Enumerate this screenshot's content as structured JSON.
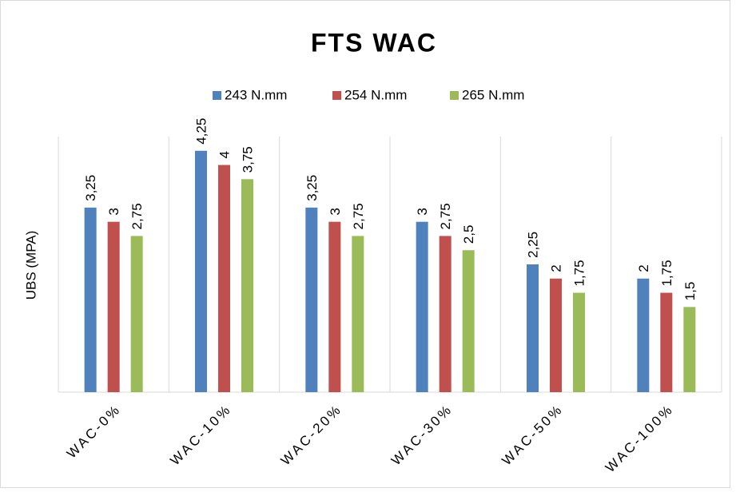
{
  "chart_data": {
    "type": "bar",
    "title": "FTS WAC",
    "y_label": "UBS (MPA)",
    "categories": [
      "WAC-0%",
      "WAC-10%",
      "WAC-20%",
      "WAC-30%",
      "WAC-50%",
      "WAC-100%"
    ],
    "series": [
      {
        "name": "243 N.mm",
        "color": "#4f81bd",
        "values": [
          3.25,
          4.25,
          3.25,
          3,
          2.25,
          2
        ],
        "value_labels": [
          "3,25",
          "4,25",
          "3,25",
          "3",
          "2,25",
          "2"
        ]
      },
      {
        "name": "254 N.mm",
        "color": "#c0504d",
        "values": [
          3,
          4,
          3,
          2.75,
          2,
          1.75
        ],
        "value_labels": [
          "3",
          "4",
          "3",
          "2,75",
          "2",
          "1,75"
        ]
      },
      {
        "name": "265 N.mm",
        "color": "#9bbb59",
        "values": [
          2.75,
          3.75,
          2.75,
          2.5,
          1.75,
          1.5
        ],
        "value_labels": [
          "2,75",
          "3,75",
          "2,75",
          "2,5",
          "1,75",
          "1,5"
        ]
      }
    ],
    "ylim": [
      0,
      4.5
    ],
    "legend": "top"
  }
}
